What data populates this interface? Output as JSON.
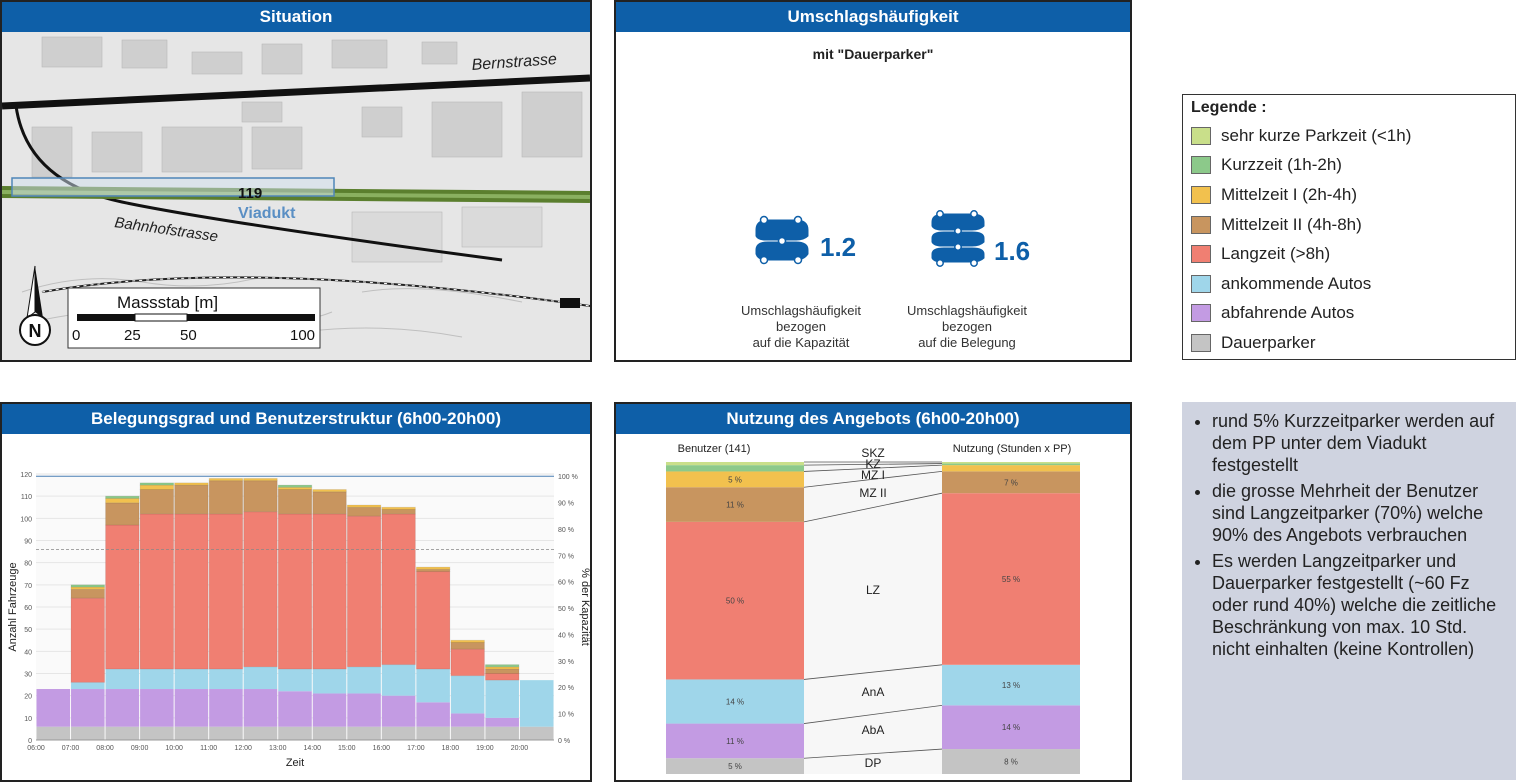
{
  "situation": {
    "title": "Situation",
    "street1": "Bernstrasse",
    "street2": "Bahnhofstrasse",
    "site_number": "119",
    "site_name": "Viadukt",
    "north": "N",
    "scale_title": "Massstab [m]",
    "scale_ticks": [
      "0",
      "25",
      "50",
      "100"
    ]
  },
  "umschlag": {
    "title": "Umschlagshäufigkeit",
    "subtitle": "mit \"Dauerparker\"",
    "kapazitaet_value": "1.2",
    "belegung_value": "1.6",
    "kapazitaet_caption": [
      "Umschlagshäufigkeit",
      "bezogen",
      "auf die Kapazität"
    ],
    "belegung_caption": [
      "Umschlagshäufigkeit",
      "bezogen",
      "auf die Belegung"
    ],
    "icon": "cars-icon"
  },
  "legend": {
    "title": "Legende :",
    "items": [
      {
        "label": "sehr kurze Parkzeit (<1h)",
        "color": "#c9df8a"
      },
      {
        "label": "Kurzzeit (1h-2h)",
        "color": "#8cc98a"
      },
      {
        "label": "Mittelzeit I (2h-4h)",
        "color": "#f2c14e"
      },
      {
        "label": "Mittelzeit II (4h-8h)",
        "color": "#c8955f"
      },
      {
        "label": "Langzeit (>8h)",
        "color": "#f07f72"
      },
      {
        "label": "ankommende Autos",
        "color": "#9fd6ea"
      },
      {
        "label": "abfahrende Autos",
        "color": "#c39be3"
      },
      {
        "label": "Dauerparker",
        "color": "#c4c4c4"
      }
    ]
  },
  "notes": [
    "rund 5% Kurzzeitparker werden auf dem PP unter dem Viadukt festgestellt",
    "die grosse Mehrheit der Benutzer sind Langzeitparker (70%) welche 90% des Angebots verbrauchen",
    "Es werden Langzeitparker und Dauerparker festgestellt (~60 Fz oder rund 40%) welche die zeitliche Beschränkung von max. 10 Std. nicht einhalten (keine Kontrollen)"
  ],
  "chart_data": [
    {
      "type": "bar",
      "stacked": true,
      "title": "Belegungsgrad und Benutzerstruktur (6h00-20h00)",
      "xlabel": "Zeit",
      "ylabel": "Anzahl Fahrzeuge",
      "y2label": "% der Kapazität",
      "ylim": [
        0,
        120
      ],
      "yticks": [
        0,
        10,
        20,
        30,
        40,
        50,
        60,
        70,
        80,
        90,
        100,
        110,
        120
      ],
      "y2lim": [
        0,
        100
      ],
      "y2ticks": [
        "0 %",
        "10 %",
        "20 %",
        "30 %",
        "40 %",
        "50 %",
        "60 %",
        "70 %",
        "80 %",
        "90 %",
        "100 %"
      ],
      "capacity_line": 119,
      "reference_line": 86,
      "xticks": [
        "06:00",
        "07:00",
        "08:00",
        "09:00",
        "10:00",
        "11:00",
        "12:00",
        "13:00",
        "14:00",
        "15:00",
        "16:00",
        "17:00",
        "18:00",
        "19:00",
        "20:00"
      ],
      "x_start": 6,
      "categories": [
        "06:00-07:00",
        "07:00-08:00",
        "08:00-09:00",
        "09:00-10:00",
        "10:00-11:00",
        "11:00-12:00",
        "12:00-13:00",
        "13:00-14:00",
        "14:00-15:00",
        "15:00-16:00",
        "16:00-17:00",
        "17:00-18:00",
        "18:00-19:00",
        "19:00-20:00",
        "20:00-21:00"
      ],
      "series": [
        {
          "name": "Dauerparker",
          "color": "#c4c4c4",
          "values": [
            6,
            6,
            6,
            6,
            6,
            6,
            6,
            6,
            6,
            6,
            6,
            6,
            6,
            6,
            6
          ]
        },
        {
          "name": "abfahrende Autos",
          "color": "#c39be3",
          "values": [
            17,
            17,
            17,
            17,
            17,
            17,
            17,
            16,
            15,
            15,
            14,
            11,
            6,
            4,
            0
          ]
        },
        {
          "name": "ankommende Autos",
          "color": "#9fd6ea",
          "values": [
            0,
            3,
            9,
            9,
            9,
            9,
            10,
            10,
            11,
            12,
            14,
            15,
            17,
            17,
            21
          ]
        },
        {
          "name": "Langzeit (>8h)",
          "color": "#f07f72",
          "values": [
            0,
            38,
            65,
            70,
            70,
            70,
            70,
            70,
            70,
            68,
            68,
            44,
            12,
            3,
            0
          ]
        },
        {
          "name": "Mittelzeit II (4h-8h)",
          "color": "#c8955f",
          "values": [
            0,
            4,
            10,
            11,
            13,
            15,
            14,
            11,
            10,
            4,
            2,
            1,
            3,
            2,
            0
          ]
        },
        {
          "name": "Mittelzeit I (2h-4h)",
          "color": "#f2c14e",
          "values": [
            0,
            1,
            2,
            2,
            1,
            1,
            1,
            1,
            1,
            1,
            1,
            1,
            1,
            1,
            0
          ]
        },
        {
          "name": "Kurzzeit (1h-2h)",
          "color": "#8cc98a",
          "values": [
            0,
            1,
            1,
            1,
            0,
            0,
            0,
            1,
            0,
            0,
            0,
            0,
            0,
            1,
            0
          ]
        },
        {
          "name": "sehr kurze Parkzeit (<1h)",
          "color": "#c9df8a",
          "values": [
            0,
            0,
            0,
            0,
            0,
            0,
            0,
            0,
            0,
            0,
            0,
            0,
            0,
            0,
            0
          ]
        }
      ]
    },
    {
      "type": "bar",
      "stacked": true,
      "percent": true,
      "title": "Nutzung des Angebots (6h00-20h00)",
      "columns": [
        "Benutzer (141)",
        "Nutzung (Stunden x PP)"
      ],
      "segments": [
        {
          "label": "DP",
          "color": "#c4c4c4",
          "values": [
            5,
            8
          ],
          "value_labels": [
            "5 %",
            "8 %"
          ]
        },
        {
          "label": "AbA",
          "color": "#c39be3",
          "values": [
            11,
            14
          ],
          "value_labels": [
            "11 %",
            "14 %"
          ]
        },
        {
          "label": "AnA",
          "color": "#9fd6ea",
          "values": [
            14,
            13
          ],
          "value_labels": [
            "14 %",
            "13 %"
          ]
        },
        {
          "label": "LZ",
          "color": "#f07f72",
          "values": [
            50,
            55
          ],
          "value_labels": [
            "50 %",
            "55 %"
          ]
        },
        {
          "label": "MZ II",
          "color": "#c8955f",
          "values": [
            11,
            7
          ],
          "value_labels": [
            "11 %",
            "7 %"
          ]
        },
        {
          "label": "MZ I",
          "color": "#f2c14e",
          "values": [
            5,
            2
          ],
          "value_labels": [
            "5 %",
            ""
          ]
        },
        {
          "label": "KZ",
          "color": "#8cc98a",
          "values": [
            2,
            0.5
          ],
          "value_labels": [
            "",
            ""
          ]
        },
        {
          "label": "SKZ",
          "color": "#c9df8a",
          "values": [
            1,
            0.5
          ],
          "value_labels": [
            "",
            ""
          ]
        }
      ]
    }
  ]
}
